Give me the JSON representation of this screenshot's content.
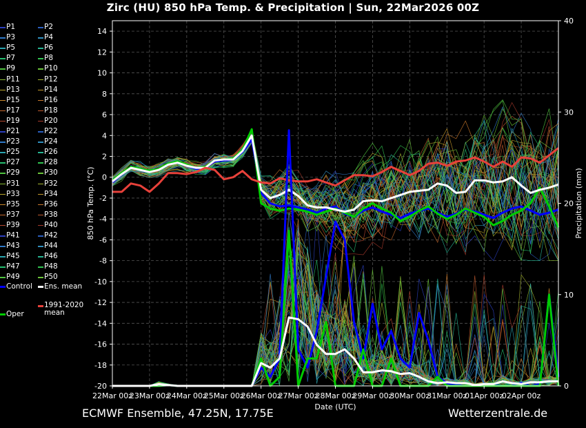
{
  "title": "Zirc  (HU)  850 hPa Temp. & Precipitation | Sun, 22Mar2026 00Z",
  "footer": {
    "left": "ECMWF Ensemble, 47.25N, 17.75E",
    "right": "Wetterzentrale.de"
  },
  "colors": {
    "control": "#0000ff",
    "oper": "#00cc00",
    "ens_mean": "#ffffff",
    "climate_mean": "#e8413a",
    "grid": "#555555"
  },
  "legend": {
    "members": [
      "P1",
      "P2",
      "P3",
      "P4",
      "P5",
      "P6",
      "P7",
      "P8",
      "P9",
      "P10",
      "P11",
      "P12",
      "P13",
      "P14",
      "P15",
      "P16",
      "P17",
      "P18",
      "P19",
      "P20",
      "P21",
      "P22",
      "P23",
      "P24",
      "P25",
      "P26",
      "P27",
      "P28",
      "P29",
      "P30",
      "P31",
      "P32",
      "P33",
      "P34",
      "P35",
      "P36",
      "P37",
      "P38",
      "P39",
      "P40",
      "P41",
      "P42",
      "P43",
      "P44",
      "P45",
      "P46",
      "P47",
      "P48",
      "P49",
      "P50"
    ],
    "member_colors": [
      "#2c3fbf",
      "#2a5fc0",
      "#2f79c8",
      "#3090c0",
      "#2aa6b0",
      "#27b593",
      "#25bf70",
      "#30c450",
      "#50c440",
      "#6cc43a",
      "#8cbf35",
      "#a8b830",
      "#bcaa2c",
      "#c79a2a",
      "#cc8a2a",
      "#cc7a2c",
      "#c86a2e",
      "#c05a2e",
      "#b84a30",
      "#a83a2c",
      "#2c3fbf",
      "#2a5fc0",
      "#2f79c8",
      "#3090c0",
      "#2aa6b0",
      "#27b593",
      "#25bf70",
      "#30c450",
      "#50c440",
      "#6cc43a",
      "#8cbf35",
      "#a8b830",
      "#bcaa2c",
      "#c79a2a",
      "#cc8a2a",
      "#cc7a2c",
      "#c86a2e",
      "#c05a2e",
      "#b84a30",
      "#a83a2c",
      "#2c3fbf",
      "#2a5fc0",
      "#2f79c8",
      "#3090c0",
      "#2aa6b0",
      "#27b593",
      "#25bf70",
      "#30c450",
      "#50c440",
      "#6cc43a"
    ],
    "control": "Control",
    "ens_mean": "Ens. mean",
    "climate_mean": "1991-2020\nmean",
    "oper": "Oper"
  },
  "chart_data": {
    "type": "line",
    "xlabel": "Date (UTC)",
    "ylabel": "850 hPa Temp. (°C)",
    "y2label": "Precipitation (mm)",
    "ylim": [
      -20,
      15
    ],
    "y2lim": [
      0,
      40
    ],
    "yticks": [
      -20,
      -18,
      -16,
      -14,
      -12,
      -10,
      -8,
      -6,
      -4,
      -2,
      0,
      2,
      4,
      6,
      8,
      10,
      12,
      14
    ],
    "y2ticks": [
      0,
      10,
      20,
      30,
      40
    ],
    "x_range": [
      "22Mar 00z",
      "03Apr 00z"
    ],
    "x_tick_labels": [
      "22Mar 00z",
      "23Mar 00z",
      "24Mar 00z",
      "25Mar 00z",
      "26Mar 00z",
      "27Mar 00z",
      "28Mar 00z",
      "29Mar 00z",
      "30Mar 00z",
      "31Mar 00z",
      "01Apr 00z",
      "02Apr 00z"
    ],
    "grid": true,
    "x_step_hours": 6,
    "series": [
      {
        "name": "Control",
        "axis": "temp",
        "values": [
          -0.5,
          0.3,
          0.9,
          0.7,
          0.5,
          0.7,
          1.2,
          1.4,
          1.1,
          0.8,
          0.9,
          1.5,
          1.6,
          1.7,
          2.4,
          3.6,
          -1.5,
          -2.5,
          -2.8,
          -2.7,
          -2.9,
          -3.1,
          -3.4,
          -3.0,
          -2.8,
          -3.5,
          -3.8,
          -3.2,
          -2.9,
          -3.3,
          -3.6,
          -3.9,
          -3.5,
          -3.2,
          -3.0,
          -3.4,
          -3.8,
          -3.5,
          -3.1,
          -3.3,
          -3.6,
          -3.9,
          -3.4,
          -3.0,
          -2.8,
          -3.2,
          -3.6,
          -3.4,
          -3.1
        ]
      },
      {
        "name": "Oper",
        "axis": "temp",
        "values": [
          -0.3,
          0.4,
          1.0,
          0.8,
          0.6,
          0.8,
          1.3,
          1.5,
          1.2,
          0.9,
          1.0,
          1.6,
          1.7,
          1.8,
          2.6,
          4.6,
          -2.5,
          -3.0,
          -3.2,
          -3.0,
          -3.1,
          -3.3,
          -3.6,
          -3.3,
          -3.0,
          -3.4,
          -3.8,
          -3.0,
          -2.5,
          -3.0,
          -3.4,
          -4.2,
          -3.8,
          -3.2,
          -2.8,
          -3.5,
          -4.0,
          -3.6,
          -3.0,
          -3.4,
          -3.8,
          -4.6,
          -4.2,
          -3.6,
          -3.2,
          -2.5,
          -1.0,
          -2.8,
          -4.8
        ]
      },
      {
        "name": "Ens. mean",
        "axis": "temp",
        "values": [
          -0.4,
          0.3,
          0.9,
          0.7,
          0.5,
          0.7,
          1.2,
          1.4,
          1.1,
          0.9,
          0.9,
          1.6,
          1.7,
          1.7,
          2.5,
          4.0,
          -1.2,
          -2.0,
          -1.7,
          -1.2,
          -1.8,
          -2.7,
          -2.9,
          -2.9,
          -3.1,
          -3.3,
          -3.1,
          -2.3,
          -2.2,
          -2.3,
          -2.0,
          -1.7,
          -1.4,
          -1.3,
          -1.2,
          -0.6,
          -0.8,
          -1.5,
          -1.4,
          -0.3,
          -0.3,
          -0.5,
          -0.4,
          0.0,
          -0.8,
          -1.5,
          -1.2,
          -1.0,
          -0.7
        ]
      },
      {
        "name": "1991-2020 mean",
        "axis": "temp",
        "values": [
          -1.4,
          -1.4,
          -0.6,
          -0.8,
          -1.4,
          -0.6,
          0.4,
          0.4,
          0.3,
          0.5,
          0.9,
          0.7,
          -0.2,
          0.0,
          0.6,
          -0.2,
          -0.5,
          -0.6,
          -0.1,
          -0.3,
          -0.4,
          -0.4,
          -0.2,
          -0.5,
          -0.8,
          -0.3,
          0.2,
          0.2,
          0.1,
          0.5,
          1.0,
          0.6,
          0.2,
          0.6,
          1.3,
          1.4,
          1.1,
          1.5,
          1.6,
          1.9,
          1.5,
          1.0,
          1.5,
          1.0,
          1.9,
          1.8,
          1.4,
          2.1,
          2.8
        ]
      },
      {
        "name": "Control",
        "axis": "precip",
        "values": [
          0,
          0,
          0,
          0,
          0,
          0,
          0.1,
          0,
          0,
          0,
          0,
          0,
          0,
          0,
          0,
          0,
          2,
          1,
          3,
          28,
          4,
          2,
          6,
          12,
          18,
          16,
          7,
          3,
          9,
          4,
          6,
          3,
          2,
          8,
          5,
          1,
          0.3,
          0.1,
          0,
          0,
          0.2,
          0.1,
          0,
          0,
          0.3,
          0,
          0.2,
          10,
          1
        ]
      },
      {
        "name": "Oper",
        "axis": "precip",
        "values": [
          0,
          0,
          0,
          0,
          0,
          0,
          0.1,
          0,
          0,
          0,
          0,
          0,
          0,
          0,
          0,
          0,
          3,
          0,
          1,
          17,
          0,
          3,
          3,
          7,
          0,
          0,
          0,
          4,
          0,
          0,
          3,
          0,
          0,
          0,
          0,
          1,
          0,
          0,
          0,
          0,
          0,
          0,
          0,
          0,
          0,
          0,
          0,
          10,
          0
        ]
      },
      {
        "name": "Ens. mean",
        "axis": "precip",
        "values": [
          0,
          0,
          0,
          0,
          0,
          0.2,
          0.1,
          0,
          0,
          0,
          0,
          0,
          0,
          0,
          0,
          0,
          2.5,
          2,
          3,
          7.5,
          7.3,
          6.5,
          4.5,
          3.5,
          3.5,
          4,
          3,
          1.5,
          1.5,
          1.7,
          1.6,
          1.3,
          1.4,
          1.0,
          0.5,
          0.3,
          0.4,
          0.3,
          0.3,
          0.1,
          0.2,
          0.2,
          0.5,
          0.3,
          0.2,
          0.4,
          0.4,
          0.5,
          0.5
        ]
      }
    ]
  }
}
